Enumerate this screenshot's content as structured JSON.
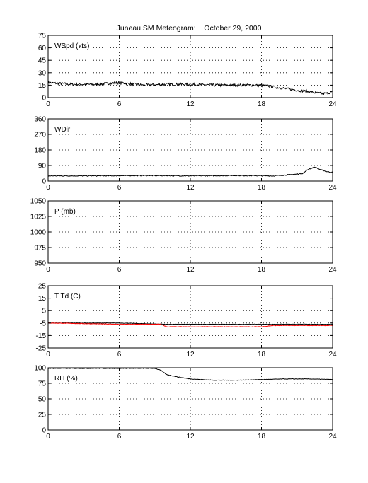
{
  "figure": {
    "title": "Juneau SM Meteogram:    October 29, 2000"
  },
  "chart_data": [
    {
      "type": "line",
      "label": "WSpd (kts)",
      "xlim": [
        0,
        24
      ],
      "xticks": [
        0,
        6,
        12,
        18,
        24
      ],
      "ylim": [
        0,
        75
      ],
      "yticks": [
        0,
        15,
        30,
        45,
        60,
        75
      ],
      "grid": true,
      "series": [
        {
          "color": "#000000",
          "noise": 1.5,
          "x": [
            0,
            2,
            4,
            6,
            8,
            10,
            12,
            14,
            16,
            18,
            19,
            20,
            21,
            22,
            23,
            23.5,
            24
          ],
          "y": [
            18,
            16,
            16,
            18,
            15,
            16,
            16,
            15,
            15,
            15,
            13,
            11,
            9,
            7,
            5,
            5,
            7
          ]
        }
      ]
    },
    {
      "type": "line",
      "label": "WDir",
      "xlim": [
        0,
        24
      ],
      "xticks": [
        0,
        6,
        12,
        18,
        24
      ],
      "ylim": [
        0,
        360
      ],
      "yticks": [
        0,
        90,
        180,
        270,
        360
      ],
      "grid": true,
      "series": [
        {
          "color": "#000000",
          "noise": 2.5,
          "x": [
            0,
            4,
            8,
            12,
            16,
            19,
            20,
            21,
            21.5,
            22,
            22.5,
            23,
            23.5,
            24
          ],
          "y": [
            30,
            30,
            32,
            30,
            32,
            30,
            35,
            40,
            45,
            70,
            80,
            65,
            55,
            50
          ]
        }
      ]
    },
    {
      "type": "line",
      "label": "P (mb)",
      "xlim": [
        0,
        24
      ],
      "xticks": [
        0,
        6,
        12,
        18,
        24
      ],
      "ylim": [
        950,
        1050
      ],
      "yticks": [
        950,
        975,
        1000,
        1025,
        1050
      ],
      "grid": true,
      "series": []
    },
    {
      "type": "line",
      "label": "T Td (C)",
      "xlim": [
        0,
        24
      ],
      "xticks": [
        0,
        6,
        12,
        18,
        24
      ],
      "ylim": [
        -25,
        25
      ],
      "yticks": [
        -25,
        -15,
        -5,
        5,
        15,
        25
      ],
      "grid": true,
      "series": [
        {
          "color": "#000000",
          "noise": 0.15,
          "x": [
            0,
            6,
            10,
            12,
            18,
            24
          ],
          "y": [
            -5,
            -5,
            -6,
            -6,
            -6,
            -6
          ]
        },
        {
          "color": "#ff0000",
          "noise": 0.2,
          "x": [
            0,
            6,
            9.5,
            10,
            12,
            18,
            19,
            24
          ],
          "y": [
            -5,
            -6,
            -6,
            -8,
            -8,
            -8,
            -7,
            -7
          ]
        }
      ]
    },
    {
      "type": "line",
      "label": "RH (%)",
      "xlim": [
        0,
        24
      ],
      "xticks": [
        0,
        6,
        12,
        18,
        24
      ],
      "ylim": [
        0,
        100
      ],
      "yticks": [
        0,
        25,
        50,
        75,
        100
      ],
      "grid": true,
      "series": [
        {
          "color": "#000000",
          "noise": 0.4,
          "x": [
            0,
            9,
            9.5,
            10,
            11,
            12,
            14,
            16,
            18,
            20,
            22,
            24
          ],
          "y": [
            99,
            99,
            96,
            89,
            85,
            82,
            80,
            80,
            81,
            82,
            82,
            81
          ]
        }
      ]
    }
  ]
}
